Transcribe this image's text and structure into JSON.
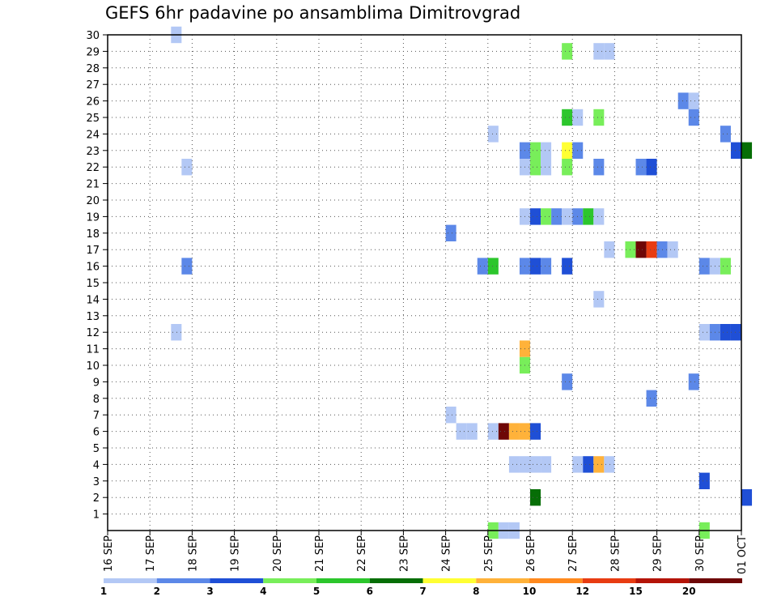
{
  "chart_data": {
    "type": "heatmap",
    "title": "GEFS 6hr padavine po ansamblima Dimitrovgrad",
    "xlabel": "",
    "ylabel": "",
    "x_ticks": [
      "16 SEP",
      "17 SEP",
      "18 SEP",
      "19 SEP",
      "20 SEP",
      "21 SEP",
      "22 SEP",
      "23 SEP",
      "24 SEP",
      "25 SEP",
      "26 SEP",
      "27 SEP",
      "28 SEP",
      "29 SEP",
      "30 SEP",
      "01 OCT"
    ],
    "y_ticks": [
      "1",
      "2",
      "3",
      "4",
      "5",
      "6",
      "7",
      "8",
      "9",
      "10",
      "11",
      "12",
      "13",
      "14",
      "15",
      "16",
      "17",
      "18",
      "19",
      "20",
      "21",
      "22",
      "23",
      "24",
      "25",
      "26",
      "27",
      "28",
      "29",
      "30"
    ],
    "xlim": [
      "16 SEP 00z",
      "01 OCT 00z"
    ],
    "ylim": [
      0,
      30
    ],
    "grid": true,
    "time_step": "6hr",
    "colorbar": {
      "levels": [
        "1",
        "2",
        "3",
        "4",
        "5",
        "6",
        "7",
        "8",
        "10",
        "12",
        "15",
        "20"
      ],
      "colors": [
        "#b3c8f5",
        "#5c88e8",
        "#1f4fd6",
        "#78ee5a",
        "#2cc62c",
        "#066e06",
        "#ffff33",
        "#ffb23a",
        "#ff8a1e",
        "#e83c12",
        "#b41408",
        "#6e0606"
      ]
    },
    "cells": [
      {
        "member": 30,
        "time": "17 SEP 12z",
        "color": "#b3c8f5"
      },
      {
        "member": 29,
        "time": "26 SEP 18z",
        "color": "#78ee5a"
      },
      {
        "member": 29,
        "time": "27 SEP 12z",
        "color": "#b3c8f5"
      },
      {
        "member": 29,
        "time": "27 SEP 18z",
        "color": "#b3c8f5"
      },
      {
        "member": 26,
        "time": "29 SEP 12z",
        "color": "#5c88e8"
      },
      {
        "member": 26,
        "time": "29 SEP 18z",
        "color": "#b3c8f5"
      },
      {
        "member": 25,
        "time": "26 SEP 18z",
        "color": "#2cc62c"
      },
      {
        "member": 25,
        "time": "27 SEP 00z",
        "color": "#b3c8f5"
      },
      {
        "member": 25,
        "time": "27 SEP 12z",
        "color": "#78ee5a"
      },
      {
        "member": 25,
        "time": "29 SEP 18z",
        "color": "#5c88e8"
      },
      {
        "member": 24,
        "time": "25 SEP 00z",
        "color": "#b3c8f5"
      },
      {
        "member": 24,
        "time": "30 SEP 12z",
        "color": "#5c88e8"
      },
      {
        "member": 23,
        "time": "25 SEP 18z",
        "color": "#5c88e8"
      },
      {
        "member": 23,
        "time": "26 SEP 00z",
        "color": "#78ee5a"
      },
      {
        "member": 23,
        "time": "26 SEP 06z",
        "color": "#b3c8f5"
      },
      {
        "member": 23,
        "time": "26 SEP 18z",
        "color": "#ffff33"
      },
      {
        "member": 23,
        "time": "27 SEP 00z",
        "color": "#5c88e8"
      },
      {
        "member": 23,
        "time": "30 SEP 18z",
        "color": "#1f4fd6"
      },
      {
        "member": 23,
        "time": "01 OCT 00z",
        "color": "#066e06"
      },
      {
        "member": 22,
        "time": "17 SEP 18z",
        "color": "#b3c8f5"
      },
      {
        "member": 22,
        "time": "25 SEP 18z",
        "color": "#b3c8f5"
      },
      {
        "member": 22,
        "time": "26 SEP 00z",
        "color": "#78ee5a"
      },
      {
        "member": 22,
        "time": "26 SEP 06z",
        "color": "#b3c8f5"
      },
      {
        "member": 22,
        "time": "26 SEP 18z",
        "color": "#78ee5a"
      },
      {
        "member": 22,
        "time": "27 SEP 12z",
        "color": "#5c88e8"
      },
      {
        "member": 22,
        "time": "28 SEP 12z",
        "color": "#5c88e8"
      },
      {
        "member": 22,
        "time": "28 SEP 18z",
        "color": "#1f4fd6"
      },
      {
        "member": 19,
        "time": "25 SEP 18z",
        "color": "#b3c8f5"
      },
      {
        "member": 19,
        "time": "26 SEP 00z",
        "color": "#1f4fd6"
      },
      {
        "member": 19,
        "time": "26 SEP 06z",
        "color": "#78ee5a"
      },
      {
        "member": 19,
        "time": "26 SEP 12z",
        "color": "#5c88e8"
      },
      {
        "member": 19,
        "time": "26 SEP 18z",
        "color": "#b3c8f5"
      },
      {
        "member": 19,
        "time": "27 SEP 00z",
        "color": "#5c88e8"
      },
      {
        "member": 19,
        "time": "27 SEP 06z",
        "color": "#2cc62c"
      },
      {
        "member": 19,
        "time": "27 SEP 12z",
        "color": "#b3c8f5"
      },
      {
        "member": 18,
        "time": "24 SEP 00z",
        "color": "#5c88e8"
      },
      {
        "member": 17,
        "time": "27 SEP 18z",
        "color": "#b3c8f5"
      },
      {
        "member": 17,
        "time": "28 SEP 06z",
        "color": "#78ee5a"
      },
      {
        "member": 17,
        "time": "28 SEP 12z",
        "color": "#6e0606"
      },
      {
        "member": 17,
        "time": "28 SEP 18z",
        "color": "#e83c12"
      },
      {
        "member": 17,
        "time": "29 SEP 00z",
        "color": "#5c88e8"
      },
      {
        "member": 17,
        "time": "29 SEP 06z",
        "color": "#b3c8f5"
      },
      {
        "member": 16,
        "time": "17 SEP 18z",
        "color": "#5c88e8"
      },
      {
        "member": 16,
        "time": "24 SEP 18z",
        "color": "#5c88e8"
      },
      {
        "member": 16,
        "time": "25 SEP 00z",
        "color": "#2cc62c"
      },
      {
        "member": 16,
        "time": "25 SEP 18z",
        "color": "#5c88e8"
      },
      {
        "member": 16,
        "time": "26 SEP 00z",
        "color": "#1f4fd6"
      },
      {
        "member": 16,
        "time": "26 SEP 06z",
        "color": "#5c88e8"
      },
      {
        "member": 16,
        "time": "26 SEP 18z",
        "color": "#1f4fd6"
      },
      {
        "member": 16,
        "time": "30 SEP 00z",
        "color": "#5c88e8"
      },
      {
        "member": 16,
        "time": "30 SEP 06z",
        "color": "#b3c8f5"
      },
      {
        "member": 16,
        "time": "30 SEP 12z",
        "color": "#78ee5a"
      },
      {
        "member": 14,
        "time": "27 SEP 12z",
        "color": "#b3c8f5"
      },
      {
        "member": 12,
        "time": "17 SEP 12z",
        "color": "#b3c8f5"
      },
      {
        "member": 12,
        "time": "30 SEP 00z",
        "color": "#b3c8f5"
      },
      {
        "member": 12,
        "time": "30 SEP 06z",
        "color": "#5c88e8"
      },
      {
        "member": 12,
        "time": "30 SEP 12z",
        "color": "#1f4fd6"
      },
      {
        "member": 12,
        "time": "30 SEP 18z",
        "color": "#1f4fd6"
      },
      {
        "member": 11,
        "time": "25 SEP 18z",
        "color": "#ffb23a"
      },
      {
        "member": 10,
        "time": "25 SEP 18z",
        "color": "#78ee5a"
      },
      {
        "member": 9,
        "time": "26 SEP 18z",
        "color": "#5c88e8"
      },
      {
        "member": 9,
        "time": "29 SEP 18z",
        "color": "#5c88e8"
      },
      {
        "member": 8,
        "time": "28 SEP 18z",
        "color": "#5c88e8"
      },
      {
        "member": 7,
        "time": "24 SEP 00z",
        "color": "#b3c8f5"
      },
      {
        "member": 6,
        "time": "24 SEP 06z",
        "color": "#b3c8f5"
      },
      {
        "member": 6,
        "time": "24 SEP 12z",
        "color": "#b3c8f5"
      },
      {
        "member": 6,
        "time": "25 SEP 00z",
        "color": "#b3c8f5"
      },
      {
        "member": 6,
        "time": "25 SEP 06z",
        "color": "#6e0606"
      },
      {
        "member": 6,
        "time": "25 SEP 12z",
        "color": "#ffb23a"
      },
      {
        "member": 6,
        "time": "25 SEP 18z",
        "color": "#ffb23a"
      },
      {
        "member": 6,
        "time": "26 SEP 00z",
        "color": "#1f4fd6"
      },
      {
        "member": 4,
        "time": "25 SEP 12z",
        "color": "#b3c8f5"
      },
      {
        "member": 4,
        "time": "25 SEP 18z",
        "color": "#b3c8f5"
      },
      {
        "member": 4,
        "time": "26 SEP 00z",
        "color": "#b3c8f5"
      },
      {
        "member": 4,
        "time": "26 SEP 06z",
        "color": "#b3c8f5"
      },
      {
        "member": 4,
        "time": "27 SEP 00z",
        "color": "#b3c8f5"
      },
      {
        "member": 4,
        "time": "27 SEP 06z",
        "color": "#1f4fd6"
      },
      {
        "member": 4,
        "time": "27 SEP 12z",
        "color": "#ffb23a"
      },
      {
        "member": 4,
        "time": "27 SEP 18z",
        "color": "#b3c8f5"
      },
      {
        "member": 3,
        "time": "30 SEP 00z",
        "color": "#1f4fd6"
      },
      {
        "member": 2,
        "time": "26 SEP 00z",
        "color": "#066e06"
      },
      {
        "member": 2,
        "time": "01 OCT 00z",
        "color": "#1f4fd6"
      },
      {
        "member": 0,
        "time": "25 SEP 00z",
        "color": "#78ee5a"
      },
      {
        "member": 0,
        "time": "25 SEP 06z",
        "color": "#b3c8f5"
      },
      {
        "member": 0,
        "time": "25 SEP 12z",
        "color": "#b3c8f5"
      },
      {
        "member": 0,
        "time": "30 SEP 00z",
        "color": "#78ee5a"
      }
    ]
  }
}
